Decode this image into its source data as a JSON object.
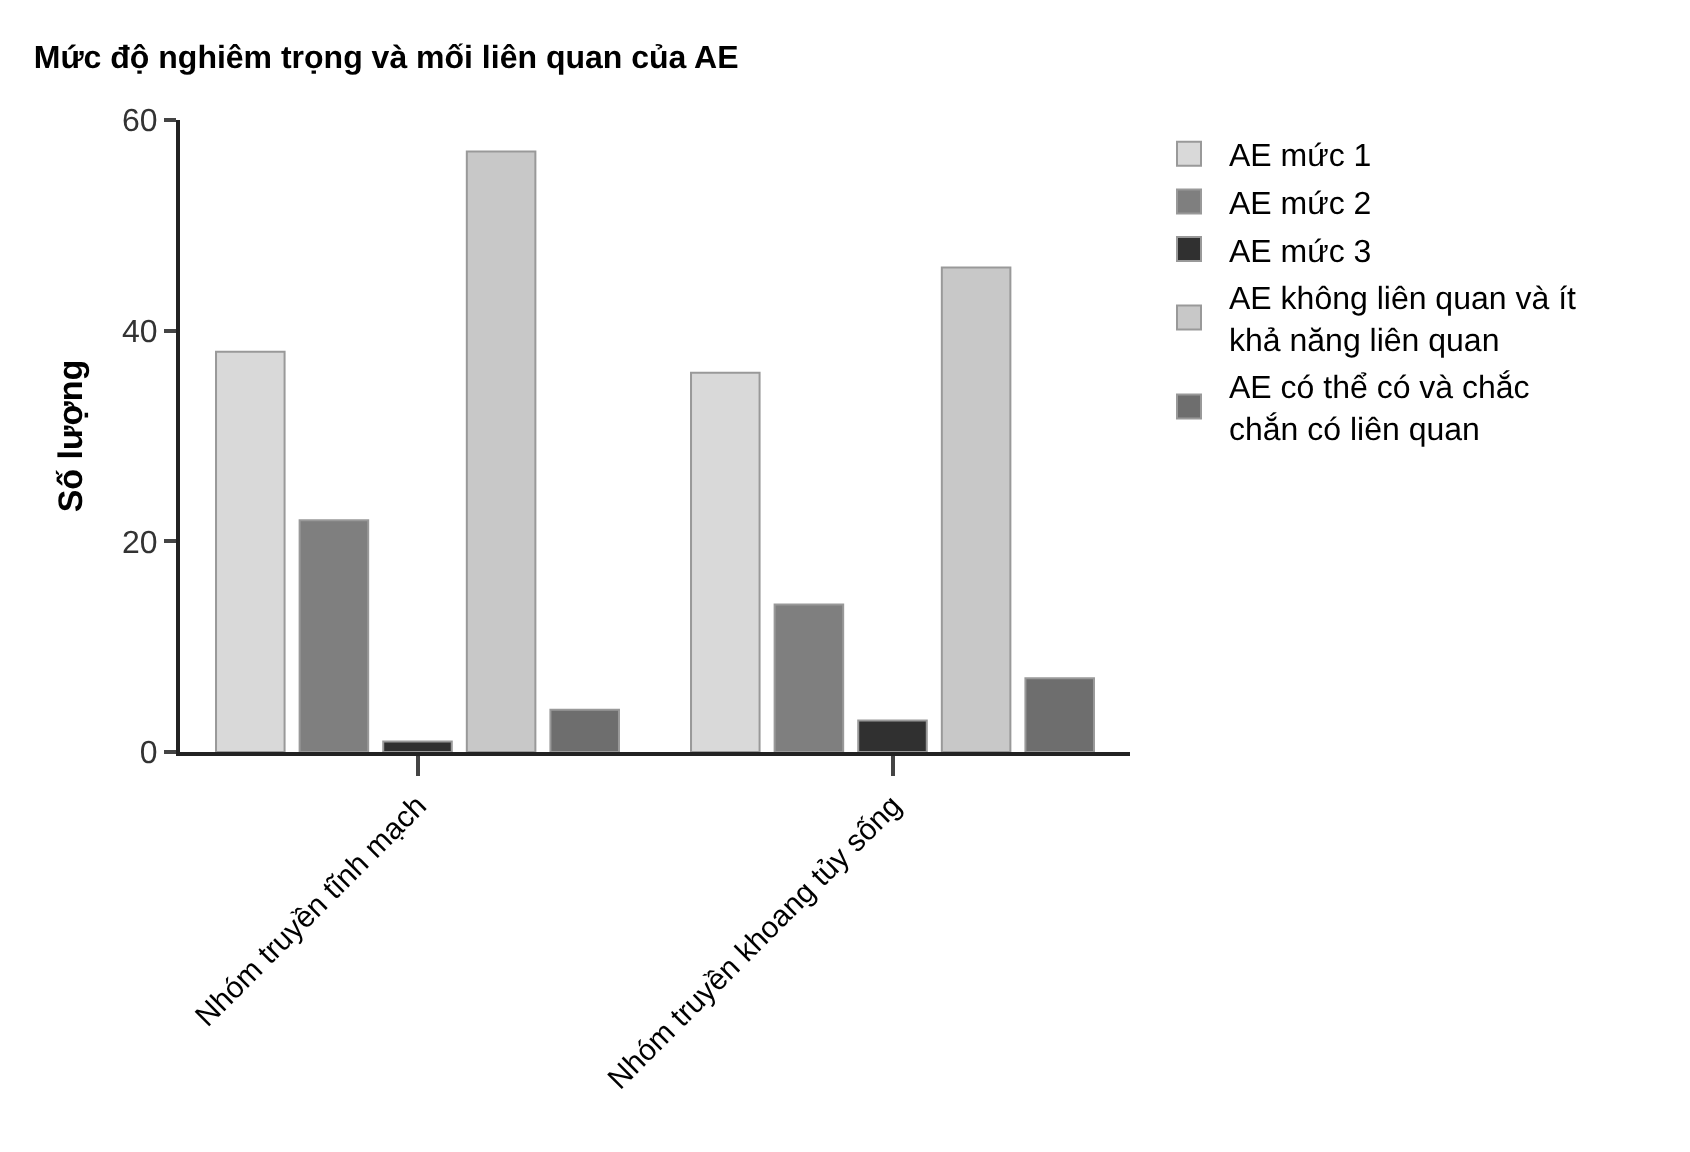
{
  "chart_data": {
    "type": "bar",
    "title": "Mức độ nghiêm trọng và mối liên quan của AE",
    "ylabel": "Số lượng",
    "categories": [
      "Nhóm truyền tĩnh mạch",
      "Nhóm truyền khoang tủy sống"
    ],
    "series": [
      {
        "name": "AE mức 1",
        "color": "#d9d9d9",
        "values": [
          38,
          36
        ]
      },
      {
        "name": "AE mức 2",
        "color": "#7f7f7f",
        "values": [
          22,
          14
        ]
      },
      {
        "name": "AE mức 3",
        "color": "#303030",
        "values": [
          1,
          3
        ]
      },
      {
        "name": "AE không liên quan và ít khả năng liên quan",
        "color": "#c8c8c8",
        "values": [
          57,
          46
        ]
      },
      {
        "name": "AE có thể có và chắc chắn có liên quan",
        "color": "#6e6e6e",
        "values": [
          4,
          7
        ]
      }
    ],
    "ylim": [
      0,
      60
    ],
    "yticks": [
      0,
      20,
      40,
      60
    ],
    "grid": false,
    "legend": "top right"
  }
}
